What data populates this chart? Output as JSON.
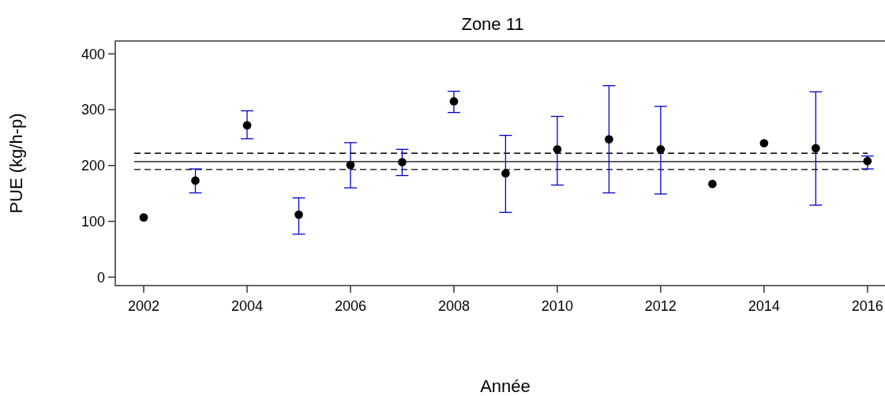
{
  "chart_data": {
    "type": "scatter",
    "title": "Zone 11",
    "xlabel": "Année",
    "ylabel": "PUE (kg/h-p)",
    "x": [
      2002,
      2003,
      2004,
      2005,
      2006,
      2007,
      2008,
      2009,
      2010,
      2011,
      2012,
      2013,
      2014,
      2015,
      2016
    ],
    "series": [
      {
        "color": "#000000",
        "values": [
          107,
          173,
          272,
          112,
          201,
          206,
          315,
          186,
          229,
          247,
          229,
          167,
          240,
          231,
          208
        ],
        "errors": [
          null,
          [
            151,
            194
          ],
          [
            248,
            298
          ],
          [
            77,
            142
          ],
          [
            160,
            241
          ],
          [
            182,
            229
          ],
          [
            295,
            333
          ],
          [
            116,
            254
          ],
          [
            165,
            288
          ],
          [
            151,
            343
          ],
          [
            149,
            306
          ],
          null,
          null,
          [
            129,
            332
          ],
          [
            194,
            217
          ]
        ]
      }
    ],
    "xlim": [
      2001.45,
      2016.4
    ],
    "xticks": [
      2002,
      2004,
      2006,
      2008,
      2010,
      2012,
      2014,
      2016
    ],
    "ylim": [
      -15,
      423
    ],
    "yticks": [
      0,
      100,
      200,
      300,
      400
    ],
    "ref_lines": [
      {
        "axis": "y",
        "value": 207,
        "color": "#000000",
        "line_style": "solid"
      },
      {
        "axis": "y",
        "value": 222,
        "color": "#000000",
        "line_style": "dashed"
      },
      {
        "axis": "y",
        "value": 193,
        "color": "#000000",
        "line_style": "dashed"
      }
    ],
    "marker": "circle",
    "grid": false
  }
}
